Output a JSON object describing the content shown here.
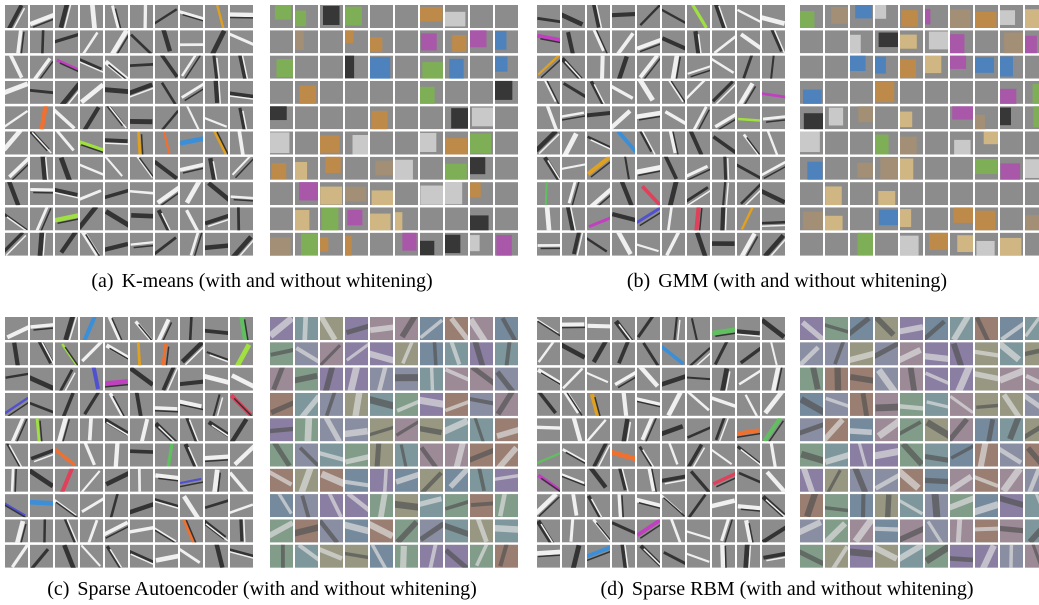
{
  "panels": [
    {
      "label": "(a)",
      "caption": "K-means (with and without whitening)"
    },
    {
      "label": "(b)",
      "caption": "GMM (with and without whitening)"
    },
    {
      "label": "(c)",
      "caption": "Sparse Autoencoder (with and without whitening)"
    },
    {
      "label": "(d)",
      "caption": "Sparse RBM (with and without whitening)"
    }
  ]
}
